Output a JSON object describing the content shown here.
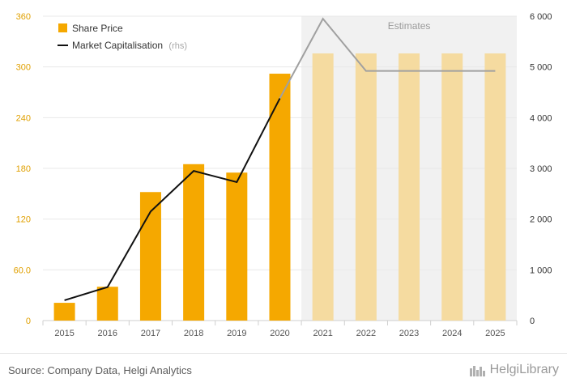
{
  "chart_data": {
    "type": "bar",
    "categories": [
      "2015",
      "2016",
      "2017",
      "2018",
      "2019",
      "2020",
      "2021",
      "2022",
      "2023",
      "2024",
      "2025"
    ],
    "estimates_from": "2021",
    "estimates_label": "Estimates",
    "series": [
      {
        "name": "Share Price",
        "type": "bar",
        "axis": "left",
        "values": [
          21,
          40,
          152,
          185,
          175,
          292,
          316,
          316,
          316,
          316,
          316
        ]
      },
      {
        "name": "Market Capitalisation",
        "name_suffix": "(rhs)",
        "type": "line",
        "axis": "right",
        "values": [
          400,
          660,
          2150,
          2950,
          2730,
          4380,
          5950,
          4920,
          4920,
          4920,
          4920
        ]
      }
    ],
    "left_axis": {
      "ylim": [
        0,
        360
      ],
      "ticks": [
        0,
        60,
        120,
        180,
        240,
        300,
        360
      ],
      "tick_labels": [
        "0",
        "60.0",
        "120",
        "180",
        "240",
        "300",
        "360"
      ]
    },
    "right_axis": {
      "ylim": [
        0,
        6000
      ],
      "ticks": [
        0,
        1000,
        2000,
        3000,
        4000,
        5000,
        6000
      ],
      "tick_labels": [
        "0",
        "1 000",
        "2 000",
        "3 000",
        "4 000",
        "5 000",
        "6 000"
      ]
    },
    "legend_position": "top-left",
    "colors": {
      "bar": "#f5a800",
      "bar_estimate": "#f5dba0",
      "line": "#111111",
      "line_estimate": "#a0a0a0",
      "estimate_bg": "#f1f1f1",
      "left_tick": "#e0a000",
      "grid": "#e8e8e8"
    }
  },
  "footer": {
    "source": "Source: Company Data, Helgi Analytics",
    "logo_text": "HelgiLibrary"
  }
}
